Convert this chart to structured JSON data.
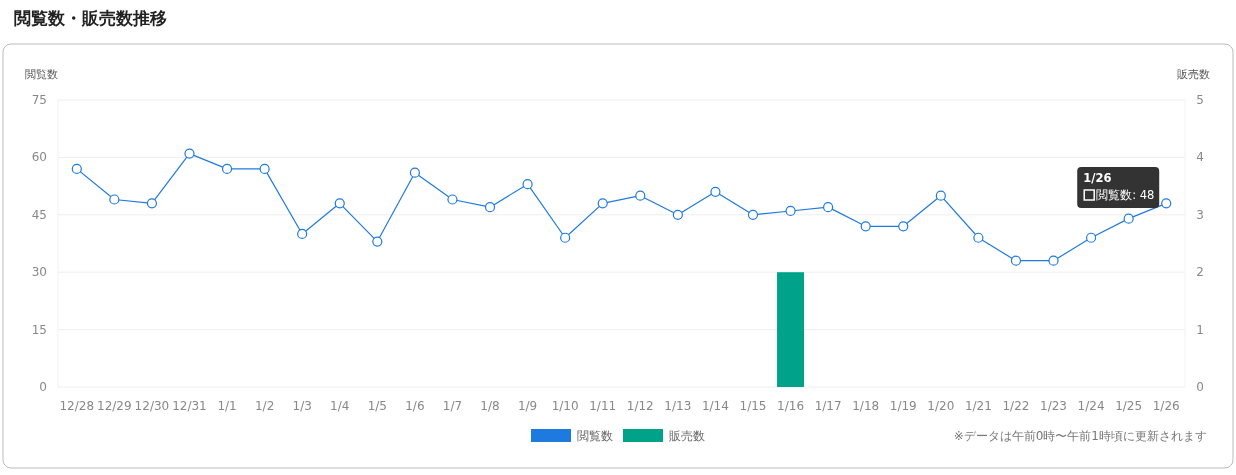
{
  "chart_data": {
    "type": "line",
    "title": "閲覧数・販売数推移",
    "ylabel": "閲覧数",
    "y2label": "販売数",
    "categories": [
      "12/28",
      "12/29",
      "12/30",
      "12/31",
      "1/1",
      "1/2",
      "1/3",
      "1/4",
      "1/5",
      "1/6",
      "1/7",
      "1/8",
      "1/9",
      "1/10",
      "1/11",
      "1/12",
      "1/13",
      "1/14",
      "1/15",
      "1/16",
      "1/17",
      "1/18",
      "1/19",
      "1/20",
      "1/21",
      "1/22",
      "1/23",
      "1/24",
      "1/25",
      "1/26"
    ],
    "series": [
      {
        "name": "閲覧数",
        "color": "#1f7ae0",
        "values": [
          57,
          49,
          48,
          61,
          57,
          57,
          40,
          48,
          38,
          56,
          49,
          47,
          53,
          39,
          48,
          50,
          45,
          51,
          45,
          46,
          47,
          42,
          42,
          50,
          39,
          33,
          33,
          39,
          44,
          48
        ]
      },
      {
        "name": "販売数",
        "type": "bar",
        "axis": "y2",
        "color": "#00a38a",
        "values": [
          0,
          0,
          0,
          0,
          0,
          0,
          0,
          0,
          0,
          0,
          0,
          0,
          0,
          0,
          0,
          0,
          0,
          0,
          0,
          2,
          0,
          0,
          0,
          0,
          0,
          0,
          0,
          0,
          0,
          0
        ]
      }
    ],
    "ylim": [
      0,
      75
    ],
    "yticks": [
      0,
      15,
      30,
      45,
      60,
      75
    ],
    "y2lim": [
      0,
      5
    ],
    "y2ticks": [
      0,
      1,
      2,
      3,
      4,
      5
    ],
    "grid": "y",
    "marker": "circle",
    "legend": "bottom",
    "annotations": [
      "1/26",
      "閲覧数: 48",
      "※データは午前0時〜午前1時頃に更新されます"
    ]
  }
}
